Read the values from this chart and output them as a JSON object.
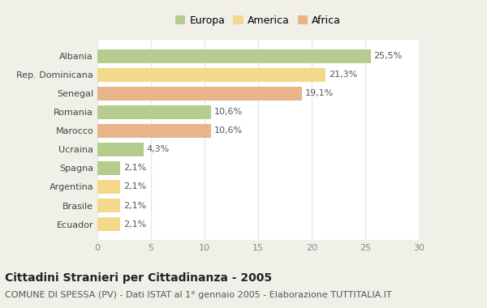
{
  "categories": [
    "Albania",
    "Rep. Dominicana",
    "Senegal",
    "Romania",
    "Marocco",
    "Ucraina",
    "Spagna",
    "Argentina",
    "Brasile",
    "Ecuador"
  ],
  "values": [
    25.5,
    21.3,
    19.1,
    10.6,
    10.6,
    4.3,
    2.1,
    2.1,
    2.1,
    2.1
  ],
  "labels": [
    "25,5%",
    "21,3%",
    "19,1%",
    "10,6%",
    "10,6%",
    "4,3%",
    "2,1%",
    "2,1%",
    "2,1%",
    "2,1%"
  ],
  "colors": [
    "#b5cc8e",
    "#f5d98b",
    "#e8b48a",
    "#b5cc8e",
    "#e8b48a",
    "#b5cc8e",
    "#b5cc8e",
    "#f5d98b",
    "#f5d98b",
    "#f5d98b"
  ],
  "legend_labels": [
    "Europa",
    "America",
    "Africa"
  ],
  "legend_colors": [
    "#b5cc8e",
    "#f5d98b",
    "#e8b48a"
  ],
  "title": "Cittadini Stranieri per Cittadinanza - 2005",
  "subtitle": "COMUNE DI SPESSA (PV) - Dati ISTAT al 1° gennaio 2005 - Elaborazione TUTTITALIA.IT",
  "xlim": [
    0,
    30
  ],
  "xticks": [
    0,
    5,
    10,
    15,
    20,
    25,
    30
  ],
  "figure_bg": "#f0f0e8",
  "axes_bg": "#ffffff",
  "grid_color": "#e8e8e8",
  "title_fontsize": 10,
  "subtitle_fontsize": 8,
  "label_fontsize": 8,
  "tick_fontsize": 8,
  "legend_fontsize": 9
}
